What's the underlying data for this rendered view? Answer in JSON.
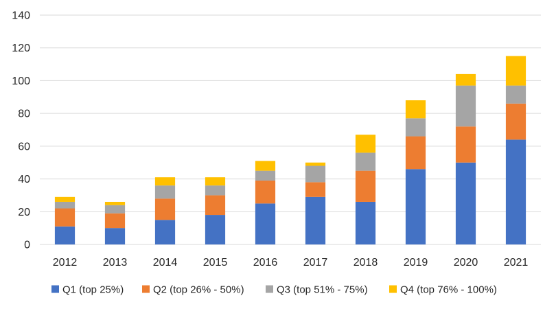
{
  "chart_data": {
    "type": "bar",
    "stacked": true,
    "categories": [
      "2012",
      "2013",
      "2014",
      "2015",
      "2016",
      "2017",
      "2018",
      "2019",
      "2020",
      "2021"
    ],
    "series": [
      {
        "name": "Q1 (top 25%)",
        "color": "#4472c4",
        "values": [
          11,
          10,
          15,
          18,
          25,
          29,
          26,
          46,
          50,
          64
        ]
      },
      {
        "name": "Q2 (top 26% - 50%)",
        "color": "#ed7d31",
        "values": [
          11,
          9,
          13,
          12,
          14,
          9,
          19,
          20,
          22,
          22
        ]
      },
      {
        "name": "Q3 (top 51% - 75%)",
        "color": "#a5a5a5",
        "values": [
          4,
          5,
          8,
          6,
          6,
          10,
          11,
          11,
          25,
          11
        ]
      },
      {
        "name": "Q4 (top 76% - 100%)",
        "color": "#ffc000",
        "values": [
          3,
          2,
          5,
          5,
          6,
          2,
          11,
          11,
          7,
          18
        ]
      }
    ],
    "ylim": [
      0,
      140
    ],
    "yticks": [
      0,
      20,
      40,
      60,
      80,
      100,
      120,
      140
    ],
    "grid": true,
    "legend_position": "bottom"
  }
}
